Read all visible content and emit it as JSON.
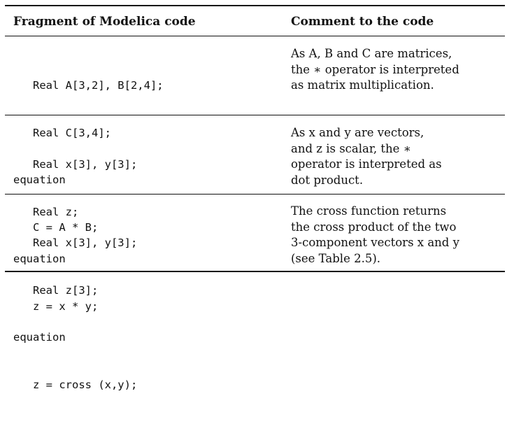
{
  "header": {
    "col1": "Fragment of Modelica code",
    "col2": "Comment to the code"
  },
  "rows": [
    {
      "code": [
        "   Real A[3,2], B[2,4];",
        "   Real C[3,4];",
        "equation",
        "   C = A * B;"
      ],
      "comment": [
        "As A, B and C are matrices,",
        "the ∗ operator is interpreted",
        "as matrix multiplication."
      ]
    },
    {
      "code": [
        "   Real x[3], y[3];",
        "   Real z;",
        "equation",
        "   z = x * y;"
      ],
      "comment": [
        "As x and y are vectors,",
        "and z is scalar, the ∗",
        "operator is interpreted as",
        "dot product."
      ]
    },
    {
      "code": [
        "   Real x[3], y[3];",
        "   Real z[3];",
        "equation",
        "   z = cross (x,y);"
      ],
      "comment": [
        "The cross function returns",
        "the cross product of the two",
        "3-component vectors x and y",
        "(see Table 2.5)."
      ]
    }
  ]
}
